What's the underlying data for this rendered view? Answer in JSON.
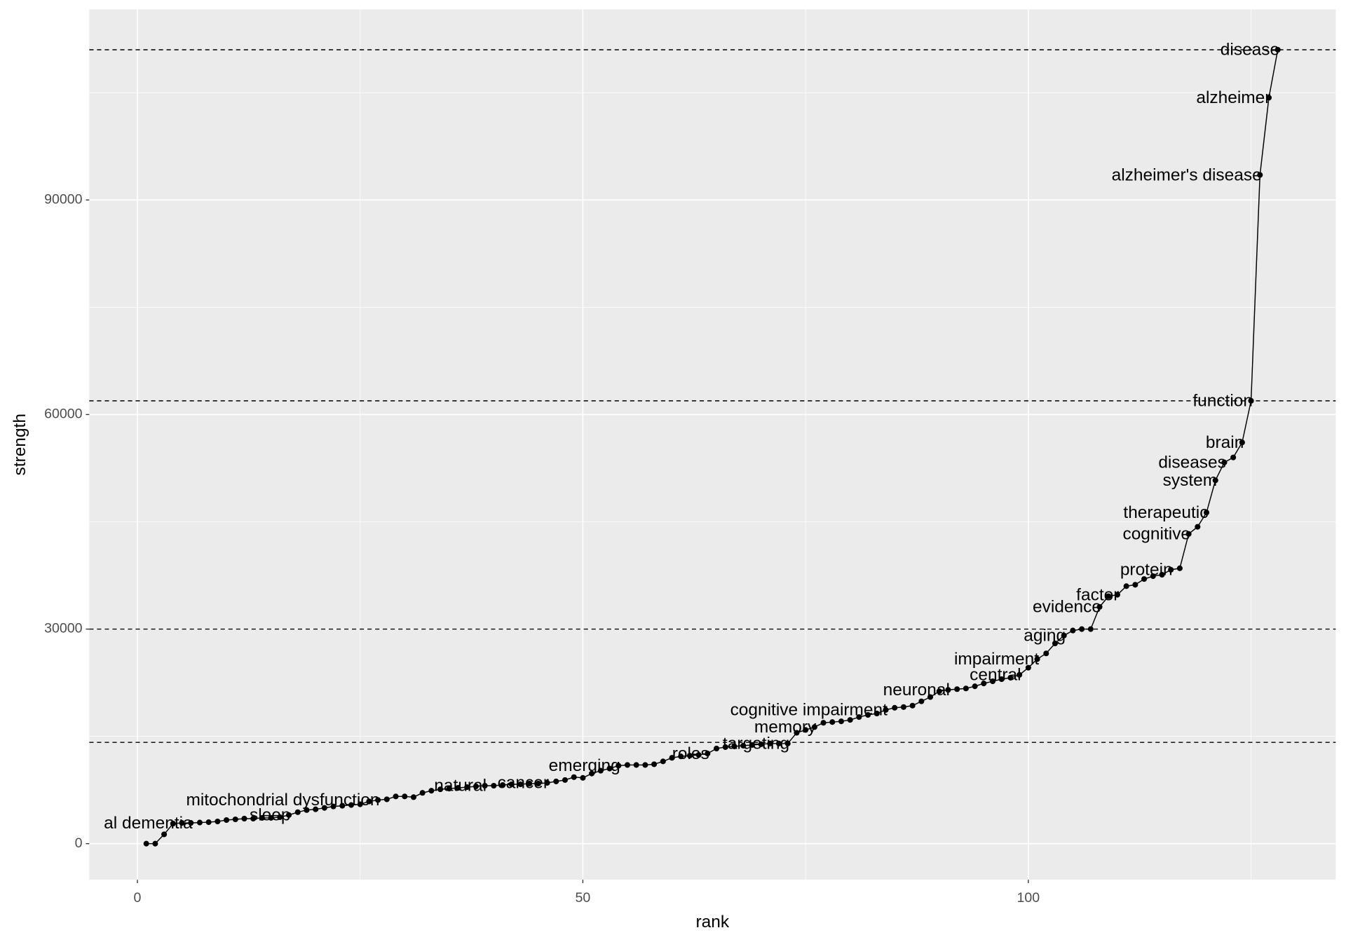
{
  "chart_data": {
    "type": "line",
    "xlabel": "rank",
    "ylabel": "strength",
    "x": [
      1,
      2,
      3,
      4,
      5,
      6,
      7,
      8,
      9,
      10,
      11,
      12,
      13,
      14,
      15,
      16,
      17,
      18,
      19,
      20,
      21,
      22,
      23,
      24,
      25,
      26,
      27,
      28,
      29,
      30,
      31,
      32,
      33,
      34,
      35,
      36,
      37,
      38,
      39,
      40,
      41,
      42,
      43,
      44,
      45,
      46,
      47,
      48,
      49,
      50,
      51,
      52,
      53,
      54,
      55,
      56,
      57,
      58,
      59,
      60,
      61,
      62,
      63,
      64,
      65,
      66,
      67,
      68,
      69,
      70,
      71,
      72,
      73,
      74,
      75,
      76,
      77,
      78,
      79,
      80,
      81,
      82,
      83,
      84,
      85,
      86,
      87,
      88,
      89,
      90,
      91,
      92,
      93,
      94,
      95,
      96,
      97,
      98,
      99,
      100,
      101,
      102,
      103,
      104,
      105,
      106,
      107,
      108,
      109,
      110,
      111,
      112,
      113,
      114,
      115,
      116,
      117,
      118,
      119,
      120,
      121,
      122,
      123,
      124,
      125,
      126,
      127,
      128
    ],
    "values": [
      0,
      0,
      1300,
      2800,
      2900,
      2900,
      2950,
      3000,
      3100,
      3300,
      3400,
      3500,
      3500,
      3600,
      3600,
      3700,
      4000,
      4400,
      4700,
      4800,
      5000,
      5200,
      5300,
      5400,
      5500,
      5900,
      6100,
      6200,
      6600,
      6600,
      6500,
      7100,
      7400,
      7600,
      7700,
      7800,
      7900,
      8000,
      8100,
      8100,
      8200,
      8300,
      8300,
      8400,
      8400,
      8500,
      8700,
      8900,
      9300,
      9200,
      9800,
      10200,
      10500,
      10900,
      11000,
      11000,
      11000,
      11100,
      11500,
      12000,
      12200,
      12300,
      12400,
      12600,
      13300,
      13500,
      13600,
      13700,
      13800,
      13900,
      14000,
      14000,
      14000,
      15500,
      15900,
      16300,
      16900,
      17000,
      17100,
      17300,
      17700,
      18000,
      18200,
      18700,
      19000,
      19100,
      19300,
      19900,
      20500,
      21300,
      21500,
      21600,
      21700,
      22000,
      22400,
      22700,
      23000,
      23200,
      23600,
      24600,
      25800,
      26600,
      28000,
      29100,
      29800,
      30000,
      30000,
      33100,
      34600,
      34800,
      36000,
      36200,
      37000,
      37400,
      37600,
      38300,
      38500,
      43300,
      44300,
      46300,
      50800,
      53300,
      54000,
      56100,
      61920,
      93500,
      104300,
      111000
    ],
    "labels": [
      null,
      null,
      null,
      null,
      null,
      "al dementia",
      null,
      null,
      null,
      null,
      null,
      null,
      null,
      null,
      null,
      null,
      "sleep",
      null,
      null,
      null,
      null,
      null,
      null,
      null,
      null,
      null,
      "mitochondrial dysfunction",
      null,
      null,
      null,
      null,
      null,
      null,
      null,
      null,
      null,
      null,
      null,
      "natural",
      null,
      null,
      null,
      null,
      null,
      null,
      "cancer",
      null,
      null,
      null,
      null,
      null,
      null,
      null,
      "emerging",
      null,
      null,
      null,
      null,
      null,
      null,
      null,
      null,
      null,
      "roles",
      null,
      null,
      null,
      null,
      null,
      null,
      null,
      null,
      "targeting",
      null,
      null,
      "memory",
      null,
      null,
      null,
      null,
      null,
      null,
      null,
      "cognitive impairment",
      null,
      null,
      null,
      null,
      null,
      null,
      "neuronal",
      null,
      null,
      null,
      null,
      null,
      null,
      null,
      "central",
      null,
      "impairment",
      null,
      null,
      "aging",
      null,
      null,
      null,
      "evidence",
      null,
      "factor",
      null,
      null,
      null,
      null,
      null,
      "protein",
      null,
      "cognitive",
      null,
      "therapeutic",
      "system",
      "diseases",
      null,
      "brain",
      "function",
      "alzheimer's disease",
      "alzheimer",
      "disease"
    ],
    "color": "#000000",
    "hlines": [
      111000,
      61920,
      30000,
      14160
    ],
    "xlim": [
      -5.4,
      134.5
    ],
    "ylim": [
      -5040,
      116640
    ],
    "xticks": [
      0,
      50,
      100
    ],
    "yticks": [
      0,
      30000,
      60000,
      90000
    ],
    "grid": true
  }
}
